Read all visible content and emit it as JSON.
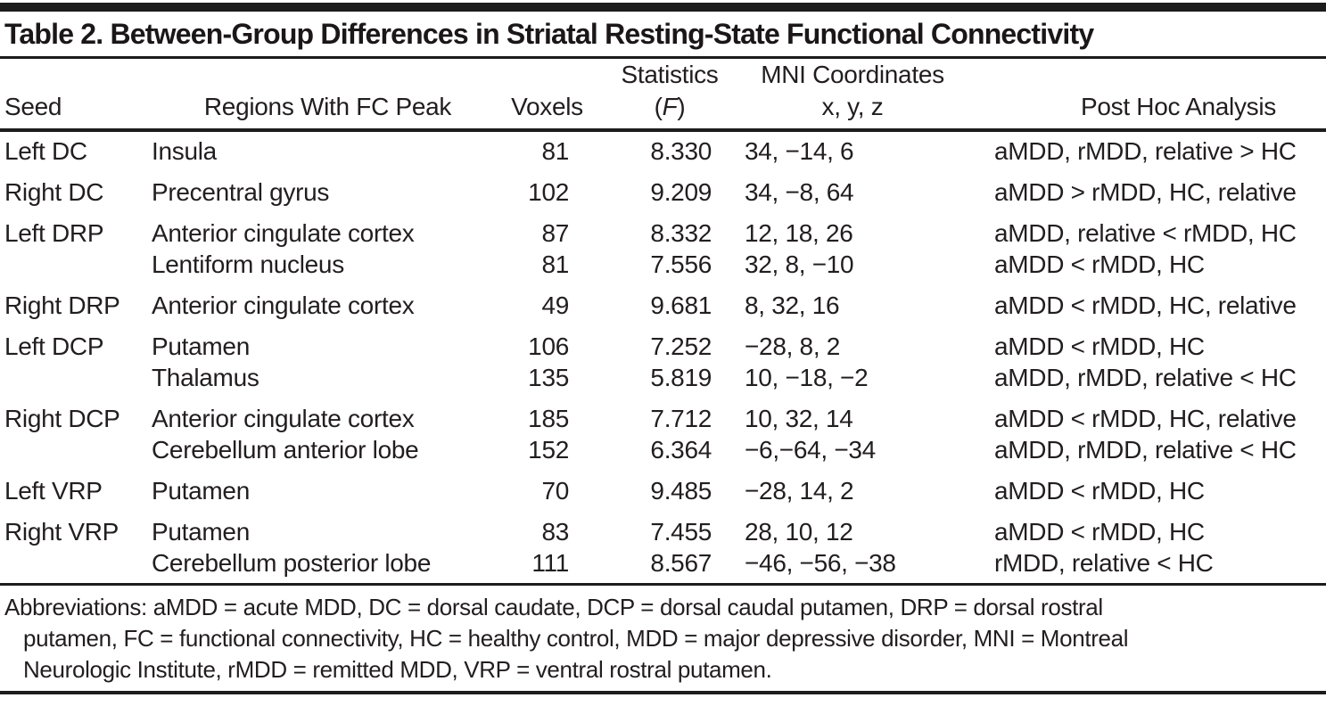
{
  "title": "Table 2. Between-Group Differences in Striatal Resting-State Functional Connectivity",
  "header": {
    "seed": "Seed",
    "regions": "Regions With FC Peak",
    "voxels": "Voxels",
    "statistics_top": "Statistics",
    "statistics_open": "(",
    "statistics_f": "F",
    "statistics_close": ")",
    "mni_top": "MNI Coordinates",
    "mni_bottom": "x, y, z",
    "post_hoc": "Post Hoc Analysis"
  },
  "rows": [
    {
      "seed": "Left DC",
      "region": "Insula",
      "voxels": "81",
      "f": "8.330",
      "mni": "34, −14, 6",
      "post_hoc": "aMDD, rMDD, relative > HC",
      "new_group": true
    },
    {
      "seed": "Right DC",
      "region": "Precentral gyrus",
      "voxels": "102",
      "f": "9.209",
      "mni": "34, −8, 64",
      "post_hoc": "aMDD > rMDD, HC, relative",
      "new_group": true
    },
    {
      "seed": "Left DRP",
      "region": "Anterior cingulate cortex",
      "voxels": "87",
      "f": "8.332",
      "mni": "12, 18, 26",
      "post_hoc": "aMDD, relative < rMDD, HC",
      "new_group": true
    },
    {
      "seed": "",
      "region": "Lentiform nucleus",
      "voxels": "81",
      "f": "7.556",
      "mni": "32, 8, −10",
      "post_hoc": "aMDD < rMDD, HC",
      "new_group": false
    },
    {
      "seed": "Right DRP",
      "region": "Anterior cingulate cortex",
      "voxels": "49",
      "f": "9.681",
      "mni": "8, 32, 16",
      "post_hoc": "aMDD < rMDD, HC, relative",
      "new_group": true
    },
    {
      "seed": "Left DCP",
      "region": "Putamen",
      "voxels": "106",
      "f": "7.252",
      "mni": "−28, 8, 2",
      "post_hoc": "aMDD < rMDD, HC",
      "new_group": true
    },
    {
      "seed": "",
      "region": "Thalamus",
      "voxels": "135",
      "f": "5.819",
      "mni": "10, −18, −2",
      "post_hoc": "aMDD, rMDD, relative < HC",
      "new_group": false
    },
    {
      "seed": "Right DCP",
      "region": "Anterior cingulate cortex",
      "voxels": "185",
      "f": "7.712",
      "mni": "10, 32, 14",
      "post_hoc": "aMDD < rMDD, HC, relative",
      "new_group": true
    },
    {
      "seed": "",
      "region": "Cerebellum anterior lobe",
      "voxels": "152",
      "f": "6.364",
      "mni": "−6,−64, −34",
      "post_hoc": "aMDD, rMDD, relative < HC",
      "new_group": false
    },
    {
      "seed": "Left VRP",
      "region": "Putamen",
      "voxels": "70",
      "f": "9.485",
      "mni": "−28, 14, 2",
      "post_hoc": "aMDD < rMDD, HC",
      "new_group": true
    },
    {
      "seed": "Right VRP",
      "region": "Putamen",
      "voxels": "83",
      "f": "7.455",
      "mni": "28, 10, 12",
      "post_hoc": "aMDD < rMDD, HC",
      "new_group": true
    },
    {
      "seed": "",
      "region": "Cerebellum posterior lobe",
      "voxels": "111",
      "f": "8.567",
      "mni": "−46, −56, −38",
      "post_hoc": "rMDD, relative < HC",
      "new_group": false
    }
  ],
  "footnote": {
    "lines": [
      "Abbreviations: aMDD = acute MDD, DC = dorsal caudate, DCP = dorsal caudal putamen, DRP = dorsal rostral",
      "putamen, FC = functional connectivity, HC = healthy control, MDD = major depressive disorder, MNI = Montreal",
      "Neurologic Institute, rMDD = remitted MDD, VRP = ventral rostral putamen."
    ]
  },
  "colors": {
    "text": "#221e1f",
    "rule": "#1c1c1c",
    "background": "#ffffff"
  }
}
